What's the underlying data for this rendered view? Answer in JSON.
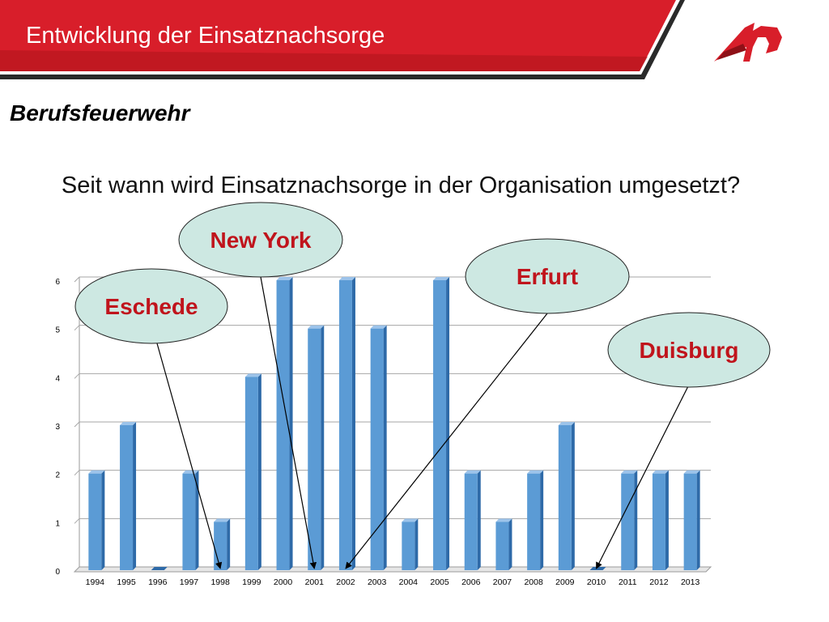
{
  "header": {
    "title": "Entwicklung der Einsatznachsorge",
    "colors": {
      "band": "#d81e2a",
      "band_dark": "#a5121b",
      "rule": "#2a2a2a"
    },
    "logo": "red swoosh logo"
  },
  "subtitle": "Berufsfeuerwehr",
  "question": "Seit wann wird Einsatznachsorge in der Organisation umgesetzt?",
  "chart_data": {
    "type": "bar",
    "categories": [
      "1994",
      "1995",
      "1996",
      "1997",
      "1998",
      "1999",
      "2000",
      "2001",
      "2002",
      "2003",
      "2004",
      "2005",
      "2006",
      "2007",
      "2008",
      "2009",
      "2010",
      "2011",
      "2012",
      "2013"
    ],
    "values": [
      2,
      3,
      0,
      2,
      1,
      4,
      6,
      5,
      6,
      5,
      1,
      6,
      2,
      1,
      2,
      3,
      0,
      2,
      2,
      2
    ],
    "ylim": [
      0,
      6
    ],
    "yticks": [
      "0",
      "1",
      "2",
      "3",
      "4",
      "5",
      "6"
    ],
    "grid": true,
    "bar_color": "#5b9bd5",
    "title": "",
    "xlabel": "",
    "ylabel": "",
    "annotations": [
      {
        "label": "Eschede",
        "points_to": "1998"
      },
      {
        "label": "New York",
        "points_to": "2001"
      },
      {
        "label": "Erfurt",
        "points_to": "2002"
      },
      {
        "label": "Duisburg",
        "points_to": "2010"
      }
    ],
    "callout_fill": "#cde8e2",
    "callout_text_color": "#c0141c"
  }
}
